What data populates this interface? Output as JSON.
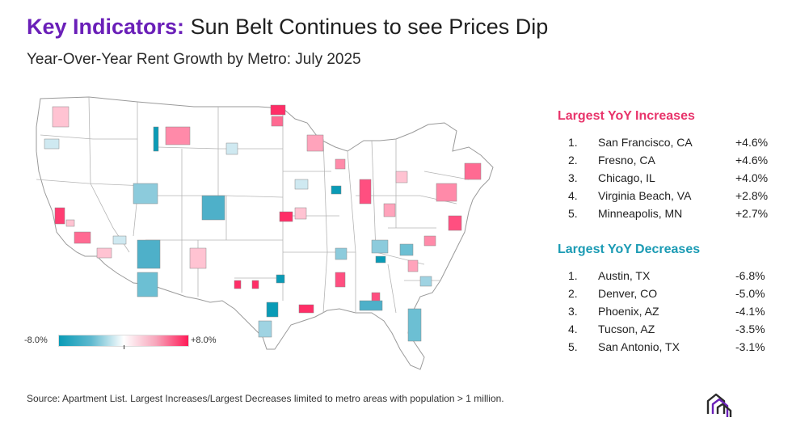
{
  "header": {
    "title_accent": "Key Indicators:",
    "title_rest": " Sun Belt Continues to see Prices Dip",
    "subtitle": "Year-Over-Year Rent Growth by Metro: July 2025"
  },
  "legend": {
    "min_label": "-8.0%",
    "max_label": "+8.0%",
    "color_low": "#0a9bb6",
    "color_mid": "#ffffff",
    "color_high": "#ff1a57"
  },
  "increases": {
    "heading": "Largest YoY Increases",
    "items": [
      {
        "rank": "1.",
        "metro": "San Francisco, CA",
        "value": "+4.6%"
      },
      {
        "rank": "2.",
        "metro": "Fresno, CA",
        "value": "+4.6%"
      },
      {
        "rank": "3.",
        "metro": "Chicago, IL",
        "value": "+4.0%"
      },
      {
        "rank": "4.",
        "metro": "Virginia Beach, VA",
        "value": "+2.8%"
      },
      {
        "rank": "5.",
        "metro": "Minneapolis, MN",
        "value": "+2.7%"
      }
    ]
  },
  "decreases": {
    "heading": "Largest YoY Decreases",
    "items": [
      {
        "rank": "1.",
        "metro": "Austin, TX",
        "value": "-6.8%"
      },
      {
        "rank": "2.",
        "metro": "Denver, CO",
        "value": "-5.0%"
      },
      {
        "rank": "3.",
        "metro": "Phoenix, AZ",
        "value": "-4.1%"
      },
      {
        "rank": "4.",
        "metro": "Tucson, AZ",
        "value": "-3.5%"
      },
      {
        "rank": "5.",
        "metro": "San Antonio, TX",
        "value": "-3.1%"
      }
    ]
  },
  "footer": {
    "source": "Source: Apartment List. Largest Increases/Largest Decreases limited to metro areas with population > 1 million."
  },
  "colors": {
    "title_accent": "#6a1fb8",
    "increase_heading": "#e8346b",
    "decrease_heading": "#1b9bb4"
  }
}
